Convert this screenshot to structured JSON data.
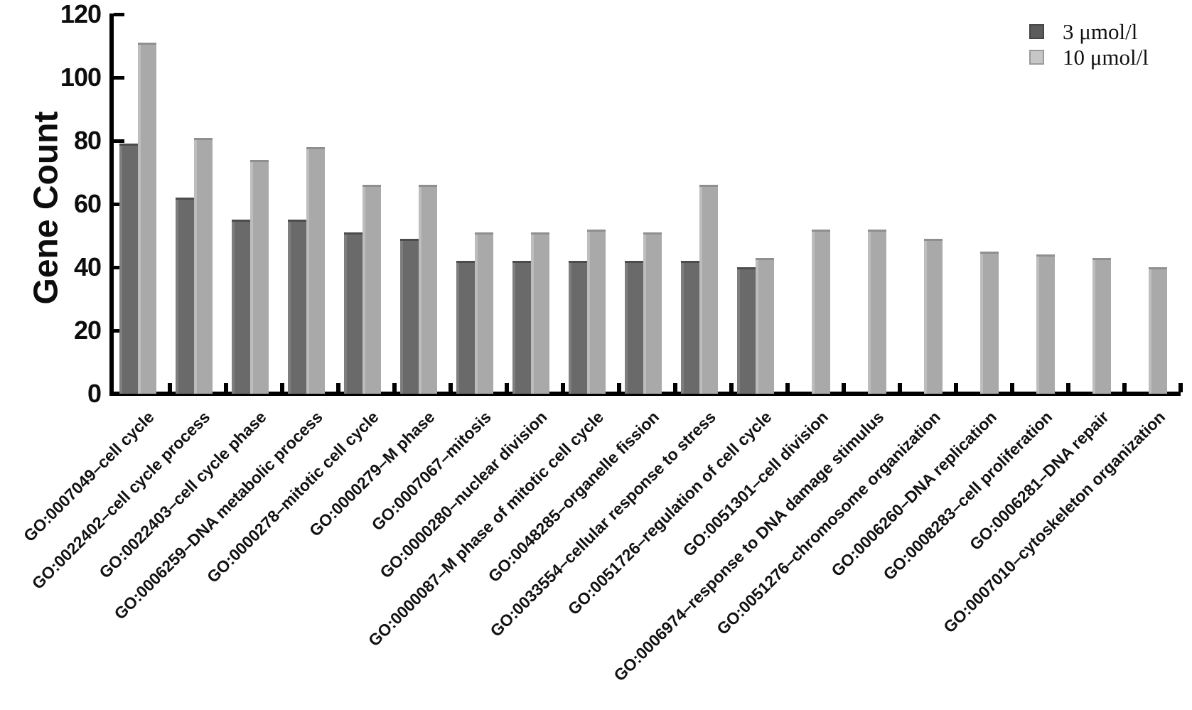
{
  "chart_data": {
    "type": "bar",
    "title": "",
    "xlabel": "",
    "ylabel": "Gene Count",
    "ylim": [
      0,
      120
    ],
    "yticks": [
      0,
      20,
      40,
      60,
      80,
      100,
      120
    ],
    "grid": false,
    "legend_position": "top-right",
    "categories": [
      "GO:0007049–cell cycle",
      "GO:0022402–cell cycle process",
      "GO:0022403–cell cycle phase",
      "GO:0006259–DNA metabolic process",
      "GO:0000278–mitotic cell cycle",
      "GO:0000279–M phase",
      "GO:0007067–mitosis",
      "GO:0000280–nuclear division",
      "GO:0000087–M phase of mitotic cell cycle",
      "GO:0048285–organelle fission",
      "GO:0033554–cellular response to stress",
      "GO:0051726–regulation of cell cycle",
      "GO:0051301–cell division",
      "GO:0006974–response to DNA damage stimulus",
      "GO:0051276–chromosome organization",
      "GO:0006260–DNA replication",
      "GO:0008283–cell proliferation",
      "GO:0006281–DNA repair",
      "GO:0007010–cytoskeleton organization"
    ],
    "series": [
      {
        "name": "3 μmol/l",
        "color": "#6a6a6a",
        "highlight_color": "#7e7e7e",
        "legend_color": "#5c5c5c",
        "values": [
          79,
          62,
          55,
          55,
          51,
          49,
          42,
          42,
          42,
          42,
          42,
          40,
          null,
          null,
          null,
          null,
          null,
          null,
          null
        ]
      },
      {
        "name": "10 μmol/l",
        "color": "#a9a9a9",
        "highlight_color": "#bdbdbd",
        "legend_color": "#c6c6c6",
        "values": [
          111,
          81,
          74,
          78,
          66,
          66,
          51,
          51,
          52,
          51,
          66,
          43,
          52,
          52,
          49,
          45,
          44,
          43,
          40
        ]
      }
    ]
  }
}
